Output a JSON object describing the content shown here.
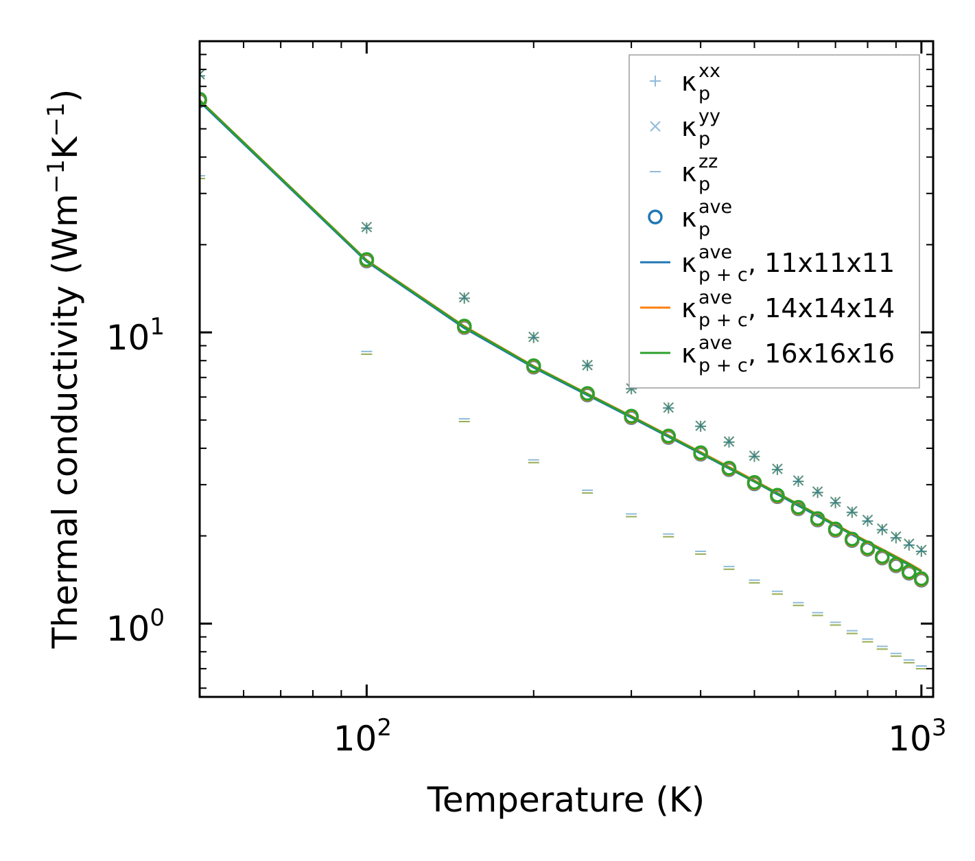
{
  "chart_data": {
    "type": "scatter",
    "xscale": "log",
    "yscale": "log",
    "xlim": [
      50,
      1050
    ],
    "ylim": [
      0.56,
      100
    ],
    "xlabel": "Temperature (K)",
    "ylabel": {
      "main": "Thermal conductivity (Wm",
      "sup1": "−1",
      "mid": "K",
      "sup2": "−1",
      "end": ")"
    },
    "x_major_ticks": [
      {
        "value": 100,
        "base": "10",
        "exp": "2"
      },
      {
        "value": 1000,
        "base": "10",
        "exp": "3"
      }
    ],
    "y_major_ticks": [
      {
        "value": 1,
        "base": "10",
        "exp": "0"
      },
      {
        "value": 10,
        "base": "10",
        "exp": "1"
      }
    ],
    "x": [
      50,
      100,
      150,
      200,
      250,
      300,
      350,
      400,
      450,
      500,
      550,
      600,
      650,
      700,
      750,
      800,
      850,
      900,
      950,
      1000
    ],
    "scatter_series": [
      {
        "name": "kappa_p_xx",
        "marker": "plus",
        "color": "#1f77b4",
        "opacity": 0.5,
        "values": [
          76.0,
          22.8,
          13.1,
          9.6,
          7.7,
          6.4,
          5.5,
          4.76,
          4.2,
          3.75,
          3.38,
          3.08,
          2.82,
          2.6,
          2.41,
          2.25,
          2.1,
          1.97,
          1.86,
          1.77
        ]
      },
      {
        "name": "kappa_p_yy",
        "marker": "x",
        "color": "#1f77b4",
        "opacity": 0.5,
        "values": [
          77.0,
          23.0,
          13.2,
          9.65,
          7.72,
          6.42,
          5.52,
          4.78,
          4.22,
          3.77,
          3.4,
          3.1,
          2.84,
          2.62,
          2.43,
          2.27,
          2.12,
          1.99,
          1.88,
          1.79
        ]
      },
      {
        "name": "kappa_p_zz",
        "marker": "hline",
        "color": "#1f77b4",
        "opacity": 0.5,
        "values": [
          34.5,
          8.6,
          5.05,
          3.65,
          2.87,
          2.38,
          2.03,
          1.77,
          1.57,
          1.41,
          1.29,
          1.18,
          1.09,
          1.01,
          0.945,
          0.885,
          0.835,
          0.79,
          0.75,
          0.715
        ]
      },
      {
        "name": "kappa_p_ave",
        "marker": "circle",
        "color": "#1f77b4",
        "opacity": 1,
        "values": [
          62.5,
          17.6,
          10.4,
          7.6,
          6.1,
          5.1,
          4.36,
          3.82,
          3.38,
          3.02,
          2.73,
          2.48,
          2.27,
          2.09,
          1.93,
          1.8,
          1.68,
          1.58,
          1.49,
          1.41
        ]
      }
    ],
    "ghost_markers": [
      {
        "marker": "plus",
        "color": "#ff7f0e",
        "opacity": 0.5,
        "series": "kappa_p_xx"
      },
      {
        "marker": "x",
        "color": "#ff7f0e",
        "opacity": 0.5,
        "series": "kappa_p_yy"
      },
      {
        "marker": "hline",
        "color": "#ff7f0e",
        "opacity": 0.5,
        "series": "kappa_p_zz"
      },
      {
        "marker": "plus",
        "color": "#2ca02c",
        "opacity": 0.5,
        "series": "kappa_p_xx"
      },
      {
        "marker": "x",
        "color": "#2ca02c",
        "opacity": 0.5,
        "series": "kappa_p_yy"
      },
      {
        "marker": "hline",
        "color": "#2ca02c",
        "opacity": 0.5,
        "series": "kappa_p_zz"
      },
      {
        "marker": "circle",
        "color": "#ff7f0e",
        "opacity": 1,
        "series": "kappa_p_ave"
      },
      {
        "marker": "circle",
        "color": "#2ca02c",
        "opacity": 1,
        "series": "kappa_p_ave"
      }
    ],
    "line_series": [
      {
        "name": "kappa_pc_ave_11",
        "color": "#1f77b4",
        "values": [
          62.0,
          17.5,
          10.35,
          7.57,
          6.09,
          5.1,
          4.38,
          3.84,
          3.41,
          3.07,
          2.78,
          2.54,
          2.34,
          2.17,
          2.02,
          1.89,
          1.78,
          1.68,
          1.59,
          1.51
        ]
      },
      {
        "name": "kappa_pc_ave_14",
        "color": "#ff7f0e",
        "values": [
          62.8,
          17.7,
          10.5,
          7.66,
          6.16,
          5.16,
          4.43,
          3.88,
          3.45,
          3.1,
          2.81,
          2.57,
          2.37,
          2.19,
          2.04,
          1.91,
          1.8,
          1.7,
          1.61,
          1.52
        ]
      },
      {
        "name": "kappa_pc_ave_16",
        "color": "#2ca02c",
        "values": [
          62.6,
          17.65,
          10.45,
          7.63,
          6.14,
          5.14,
          4.41,
          3.86,
          3.43,
          3.08,
          2.8,
          2.56,
          2.36,
          2.18,
          2.03,
          1.9,
          1.79,
          1.69,
          1.6,
          1.51
        ]
      }
    ],
    "legend": {
      "position": "upper right",
      "entries": [
        {
          "marker": "plus",
          "color": "#1f77b4",
          "opacity": 0.5,
          "base": "κ",
          "sup": "xx",
          "sub": "p",
          "suffix": ""
        },
        {
          "marker": "x",
          "color": "#1f77b4",
          "opacity": 0.5,
          "base": "κ",
          "sup": "yy",
          "sub": "p",
          "suffix": ""
        },
        {
          "marker": "hline",
          "color": "#1f77b4",
          "opacity": 0.5,
          "base": "κ",
          "sup": "zz",
          "sub": "p",
          "suffix": ""
        },
        {
          "marker": "circle",
          "color": "#1f77b4",
          "opacity": 1,
          "base": "κ",
          "sup": "ave",
          "sub": "p",
          "suffix": ""
        },
        {
          "marker": "line",
          "color": "#1f77b4",
          "opacity": 1,
          "base": "κ",
          "sup": "ave",
          "sub": "p + c",
          "suffix": ", 11x11x11"
        },
        {
          "marker": "line",
          "color": "#ff7f0e",
          "opacity": 1,
          "base": "κ",
          "sup": "ave",
          "sub": "p + c",
          "suffix": ", 14x14x14"
        },
        {
          "marker": "line",
          "color": "#2ca02c",
          "opacity": 1,
          "base": "κ",
          "sup": "ave",
          "sub": "p + c",
          "suffix": ", 16x16x16"
        }
      ]
    }
  }
}
